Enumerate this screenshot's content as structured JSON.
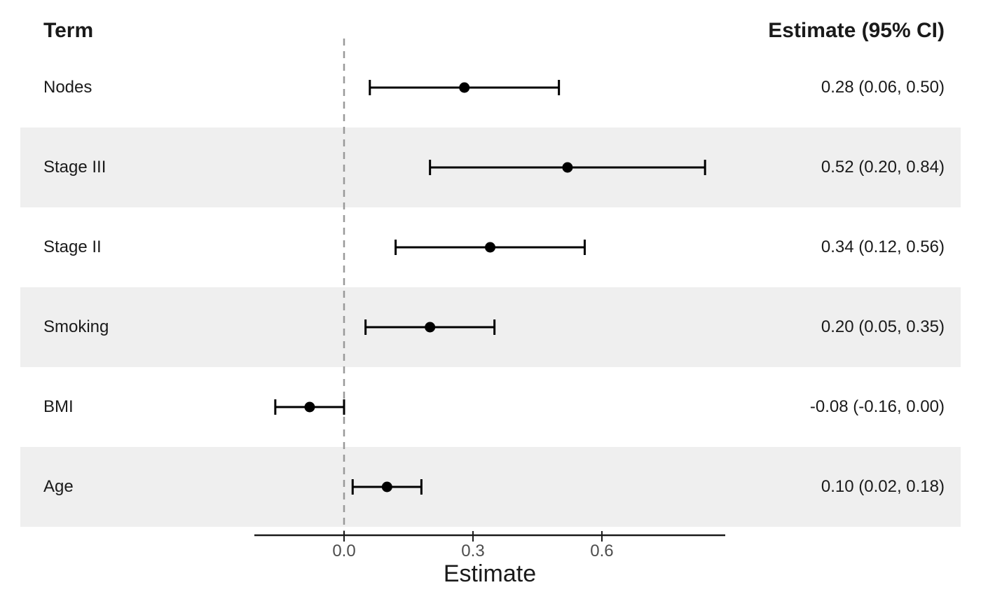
{
  "header": {
    "term": "Term",
    "estimate": "Estimate (95% CI)"
  },
  "chart_data": {
    "type": "forest",
    "xlabel": "Estimate",
    "xlim": [
      -0.21,
      0.89
    ],
    "reference_line": 0.0,
    "grid": false,
    "x_ticks": [
      {
        "value": 0.0,
        "label": "0.0"
      },
      {
        "value": 0.3,
        "label": "0.3"
      },
      {
        "value": 0.6,
        "label": "0.6"
      }
    ],
    "rows": [
      {
        "term": "Nodes",
        "estimate": 0.28,
        "ci_low": 0.06,
        "ci_high": 0.5,
        "display": "0.28 (0.06, 0.50)"
      },
      {
        "term": "Stage III",
        "estimate": 0.52,
        "ci_low": 0.2,
        "ci_high": 0.84,
        "display": "0.52 (0.20, 0.84)"
      },
      {
        "term": "Stage II",
        "estimate": 0.34,
        "ci_low": 0.12,
        "ci_high": 0.56,
        "display": "0.34 (0.12, 0.56)"
      },
      {
        "term": "Smoking",
        "estimate": 0.2,
        "ci_low": 0.05,
        "ci_high": 0.35,
        "display": "0.20 (0.05, 0.35)"
      },
      {
        "term": "BMI",
        "estimate": -0.08,
        "ci_low": -0.16,
        "ci_high": 0.0,
        "display": "-0.08 (-0.16, 0.00)"
      },
      {
        "term": "Age",
        "estimate": 0.1,
        "ci_low": 0.02,
        "ci_high": 0.18,
        "display": "0.10 (0.02, 0.18)"
      }
    ],
    "colors": {
      "stripe": "#EFEFEF",
      "marker": "#000000",
      "ci_line": "#000000",
      "reference_line": "#999999",
      "axis_line": "#1A1A1A",
      "tick_text": "#4D4D4D"
    }
  }
}
